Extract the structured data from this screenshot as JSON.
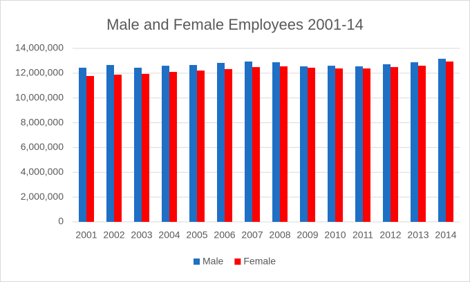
{
  "chart_data": {
    "type": "bar",
    "title": "Male and Female Employees  2001-14",
    "categories": [
      "2001",
      "2002",
      "2003",
      "2004",
      "2005",
      "2006",
      "2007",
      "2008",
      "2009",
      "2010",
      "2011",
      "2012",
      "2013",
      "2014"
    ],
    "series": [
      {
        "name": "Male",
        "color": "#1f6fc5",
        "values": [
          12440000,
          12660000,
          12440000,
          12600000,
          12660000,
          12830000,
          12940000,
          12880000,
          12550000,
          12600000,
          12550000,
          12720000,
          12880000,
          13160000
        ]
      },
      {
        "name": "Female",
        "color": "#ff0000",
        "values": [
          11770000,
          11880000,
          11940000,
          12100000,
          12210000,
          12330000,
          12490000,
          12550000,
          12440000,
          12380000,
          12380000,
          12490000,
          12600000,
          12940000
        ]
      }
    ],
    "ylim": [
      0,
      14000000
    ],
    "yticks": [
      0,
      {
        "value": 2000000,
        "label": "2,000,000"
      },
      {
        "value": 4000000,
        "label": "4,000,000"
      },
      {
        "value": 6000000,
        "label": "6,000,000"
      },
      {
        "value": 8000000,
        "label": "8,000,000"
      },
      {
        "value": 10000000,
        "label": "10,000,000"
      },
      {
        "value": 12000000,
        "label": "12,000,000"
      },
      {
        "value": 14000000,
        "label": "14,000,000"
      }
    ],
    "grid": true,
    "legend": "bottom"
  }
}
